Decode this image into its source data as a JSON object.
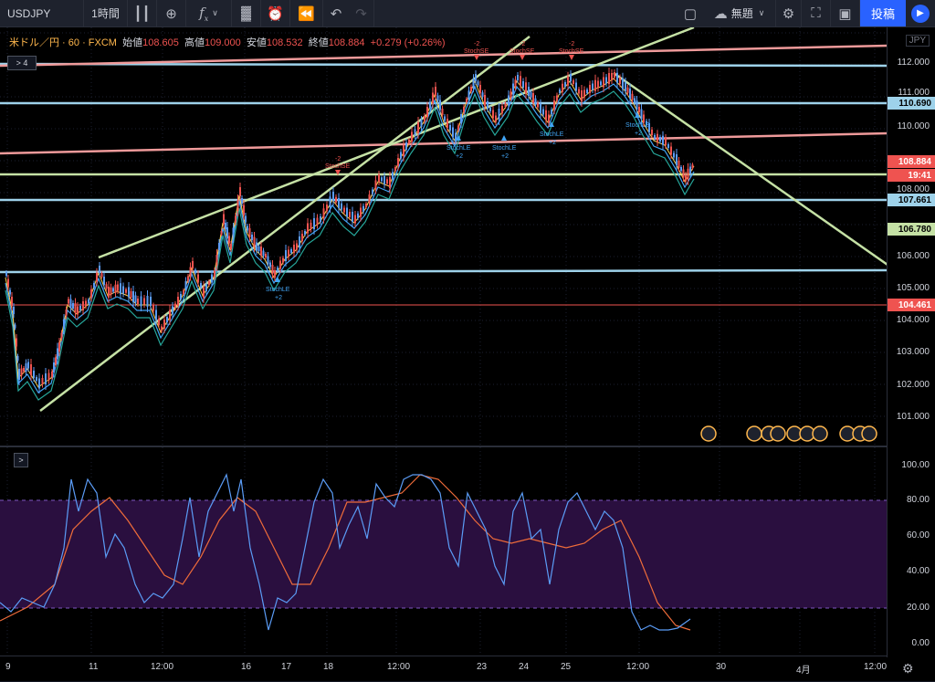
{
  "toolbar": {
    "symbol": "USDJPY",
    "interval": "1時間",
    "layout_name": "無題",
    "post_label": "投稿"
  },
  "legend": {
    "title": "米ドル／円 · 60 · FXCM",
    "open_label": "始値",
    "open": "108.605",
    "high_label": "高値",
    "high": "109.000",
    "low_label": "安値",
    "low": "108.532",
    "close_label": "終値",
    "close": "108.884",
    "change": "+0.279 (+0.26%)"
  },
  "indicators_toggle": "4",
  "currency_badge": "JPY",
  "price_ticks": [
    "112.000",
    "111.000",
    "110.000",
    "108.000",
    "106.000",
    "105.000",
    "104.000",
    "103.000",
    "102.000",
    "101.000"
  ],
  "price_tags": [
    {
      "label": "110.690",
      "color": "#9ed2ea",
      "text": "#000"
    },
    {
      "label": "108.884",
      "color": "#ef5350",
      "text": "#fff"
    },
    {
      "label": "19:41",
      "color": "#ef5350",
      "text": "#fff"
    },
    {
      "label": "107.661",
      "color": "#9ed2ea",
      "text": "#000"
    },
    {
      "label": "106.780",
      "color": "#c5e1a5",
      "text": "#000"
    },
    {
      "label": "104.461",
      "color": "#ef5350",
      "text": "#fff"
    }
  ],
  "osc_ticks": [
    "100.00",
    "80.00",
    "60.00",
    "40.00",
    "20.00",
    "0.00"
  ],
  "time_ticks": [
    "9",
    "11",
    "12:00",
    "16",
    "17",
    "18",
    "12:00",
    "23",
    "24",
    "25",
    "12:00",
    "30",
    "4月",
    "12:00"
  ],
  "annotations": {
    "stoch_se": "StochSE",
    "stoch_le": "StochLE",
    "minus2": "-2",
    "plus2": "+2"
  },
  "colors": {
    "accent": "#2962ff",
    "up": "#ef5350",
    "down": "#5b9cf6",
    "channel": "#c5e1a5",
    "hline_blue": "#9ed2ea",
    "hline_red": "#ef9a9a",
    "osc_band": "#2a0f3f"
  },
  "icons": {
    "candle": "candlestick-icon",
    "add": "add-icon",
    "fx": "indicators-icon",
    "template": "chart-template-icon",
    "alert": "alert-icon",
    "replay": "replay-icon",
    "undo": "undo-icon",
    "redo": "redo-icon",
    "cloud": "cloud-icon",
    "gear": "gear-icon",
    "fullscreen": "fullscreen-icon",
    "camera": "camera-icon",
    "play": "play-icon"
  }
}
